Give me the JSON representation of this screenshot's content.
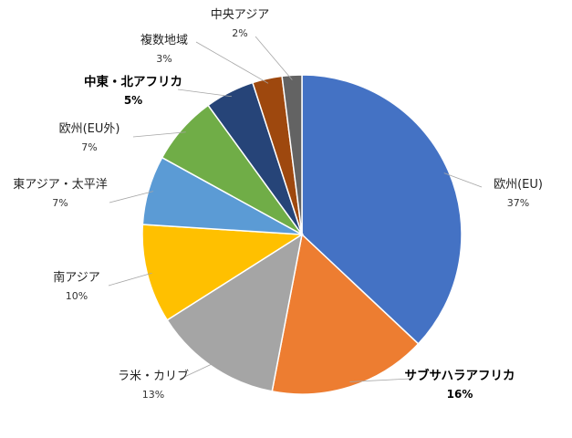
{
  "chart_data": {
    "type": "pie",
    "title": "",
    "slices": [
      {
        "label": "欧州(EU)",
        "value": 37,
        "value_label": "37%",
        "color": "#4472C4",
        "bold": false
      },
      {
        "label": "サブサハラアフリカ",
        "value": 16,
        "value_label": "16%",
        "color": "#ED7D31",
        "bold": true
      },
      {
        "label": "ラ米・カリブ",
        "value": 13,
        "value_label": "13%",
        "color": "#A5A5A5",
        "bold": false
      },
      {
        "label": "南アジア",
        "value": 10,
        "value_label": "10%",
        "color": "#FFC000",
        "bold": false
      },
      {
        "label": "東アジア・太平洋",
        "value": 7,
        "value_label": "7%",
        "color": "#5B9BD5",
        "bold": false
      },
      {
        "label": "欧州(EU外)",
        "value": 7,
        "value_label": "7%",
        "color": "#70AD47",
        "bold": false
      },
      {
        "label": "中東・北アフリカ",
        "value": 5,
        "value_label": "5%",
        "color": "#264478",
        "bold": true
      },
      {
        "label": "複数地域",
        "value": 3,
        "value_label": "3%",
        "color": "#9E480E",
        "bold": false
      },
      {
        "label": "中央アジア",
        "value": 2,
        "value_label": "2%",
        "color": "#636363",
        "bold": false
      }
    ],
    "start_angle": "12 o'clock",
    "direction": "clockwise",
    "legend": "none"
  }
}
